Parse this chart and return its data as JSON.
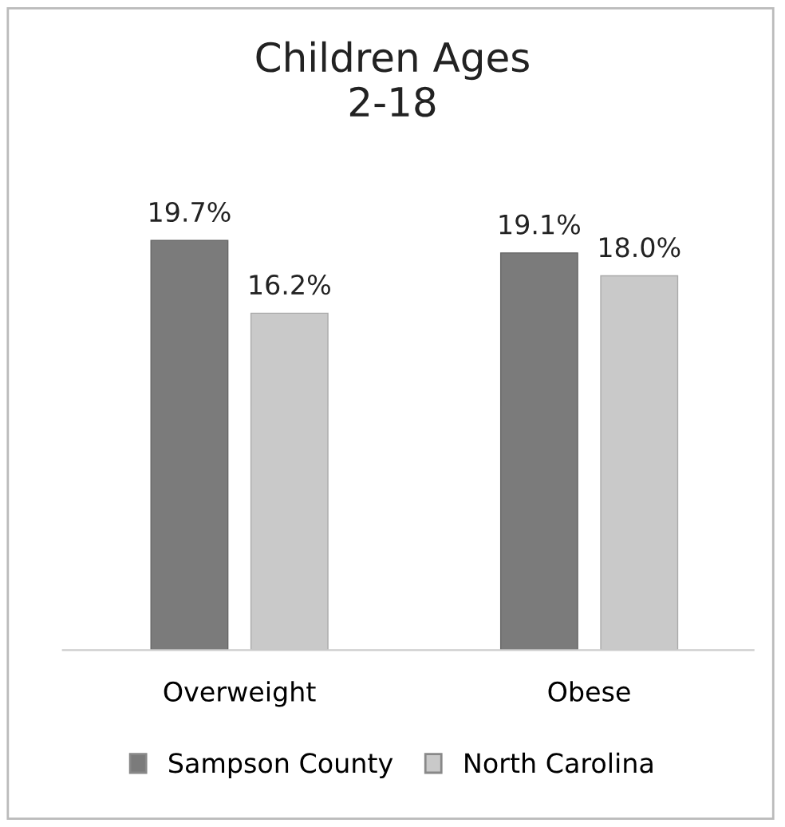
{
  "chart_data": {
    "type": "bar",
    "title": "Children Ages\n2-18",
    "categories": [
      "Overweight",
      "Obese"
    ],
    "series": [
      {
        "name": "Sampson County",
        "color": "#7b7b7b",
        "values": [
          19.7,
          19.1
        ],
        "value_labels": [
          "19.7%",
          "19.1%"
        ]
      },
      {
        "name": "North Carolina",
        "color": "#c9c9c9",
        "values": [
          16.2,
          18.0
        ],
        "value_labels": [
          "16.2%",
          "18.0%"
        ]
      }
    ],
    "legend": "bottom",
    "grid": false
  }
}
